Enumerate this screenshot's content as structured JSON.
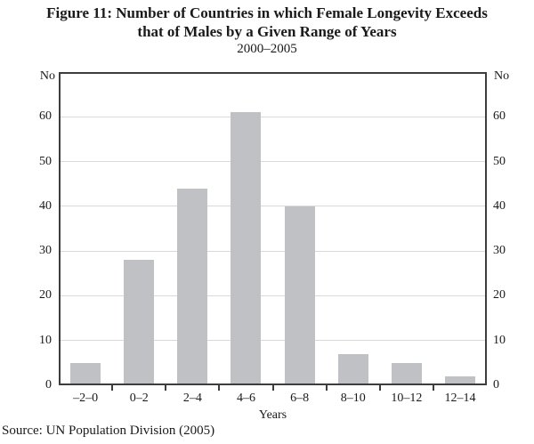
{
  "figure": {
    "title_line1": "Figure 11: Number of Countries in which Female Longevity Exceeds",
    "title_line2": "that of Males by a Given Range of Years",
    "subtitle": "2000–2005",
    "source": "Source: UN Population Division (2005)"
  },
  "chart_data": {
    "type": "bar",
    "title": "Figure 11: Number of Countries in which Female Longevity Exceeds that of Males by a Given Range of Years, 2000–2005",
    "categories": [
      "–2–0",
      "0–2",
      "2–4",
      "4–6",
      "6–8",
      "8–10",
      "10–12",
      "12–14"
    ],
    "values": [
      5,
      28,
      44,
      61,
      40,
      7,
      5,
      2
    ],
    "xlabel": "Years",
    "ylabel_left": "No",
    "ylabel_right": "No",
    "ylim": [
      0,
      70
    ],
    "yticks": [
      0,
      10,
      20,
      30,
      40,
      50,
      60
    ],
    "grid": true,
    "legend": "none",
    "colors": {
      "bar": "#bfc1c5",
      "grid": "#d9d9d9",
      "frame": "#3d3d3d",
      "text": "#1a1a1a"
    }
  }
}
